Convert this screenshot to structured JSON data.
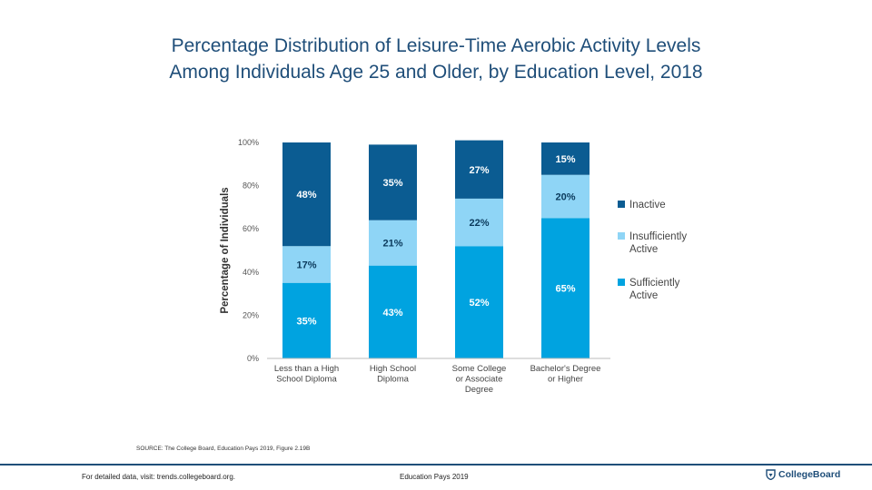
{
  "title_line1": "Percentage Distribution of Leisure-Time Aerobic Activity Levels",
  "title_line2": "Among Individuals Age 25 and Older, by Education Level, 2018",
  "colors": {
    "inactive": "#0b5c92",
    "insufficient": "#8fd5f6",
    "sufficient": "#00a3e0",
    "title": "#1f4e79"
  },
  "chart_data": {
    "type": "bar",
    "stacked": true,
    "title": "Percentage Distribution of Leisure-Time Aerobic Activity Levels Among Individuals Age 25 and Older, by Education Level, 2018",
    "xlabel": "",
    "ylabel": "Percentage of Individuals",
    "ylim": [
      0,
      100
    ],
    "yticks": [
      "0%",
      "20%",
      "40%",
      "60%",
      "80%",
      "100%"
    ],
    "categories": [
      [
        "Less than a High",
        "School Diploma"
      ],
      [
        "High School",
        "Diploma"
      ],
      [
        "Some College",
        "or Associate",
        "Degree"
      ],
      [
        "Bachelor's Degree",
        "or Higher"
      ]
    ],
    "series": [
      {
        "name": "Sufficiently Active",
        "legend_lines": [
          "Sufficiently",
          "Active"
        ],
        "values": [
          35,
          43,
          52,
          65
        ],
        "labels": [
          "35%",
          "43%",
          "52%",
          "65%"
        ]
      },
      {
        "name": "Insufficiently Active",
        "legend_lines": [
          "Insufficiently",
          "Active"
        ],
        "values": [
          17,
          21,
          22,
          20
        ],
        "labels": [
          "17%",
          "21%",
          "22%",
          "20%"
        ]
      },
      {
        "name": "Inactive",
        "legend_lines": [
          "Inactive"
        ],
        "values": [
          48,
          35,
          27,
          15
        ],
        "labels": [
          "48%",
          "35%",
          "27%",
          "15%"
        ]
      }
    ]
  },
  "source_text": "SOURCE: The College Board, Education Pays 2019, Figure 2.19B",
  "footer_left": "For detailed data, visit: trends.collegeboard.org.",
  "footer_center": "Education Pays 2019",
  "logo_text": "CollegeBoard"
}
